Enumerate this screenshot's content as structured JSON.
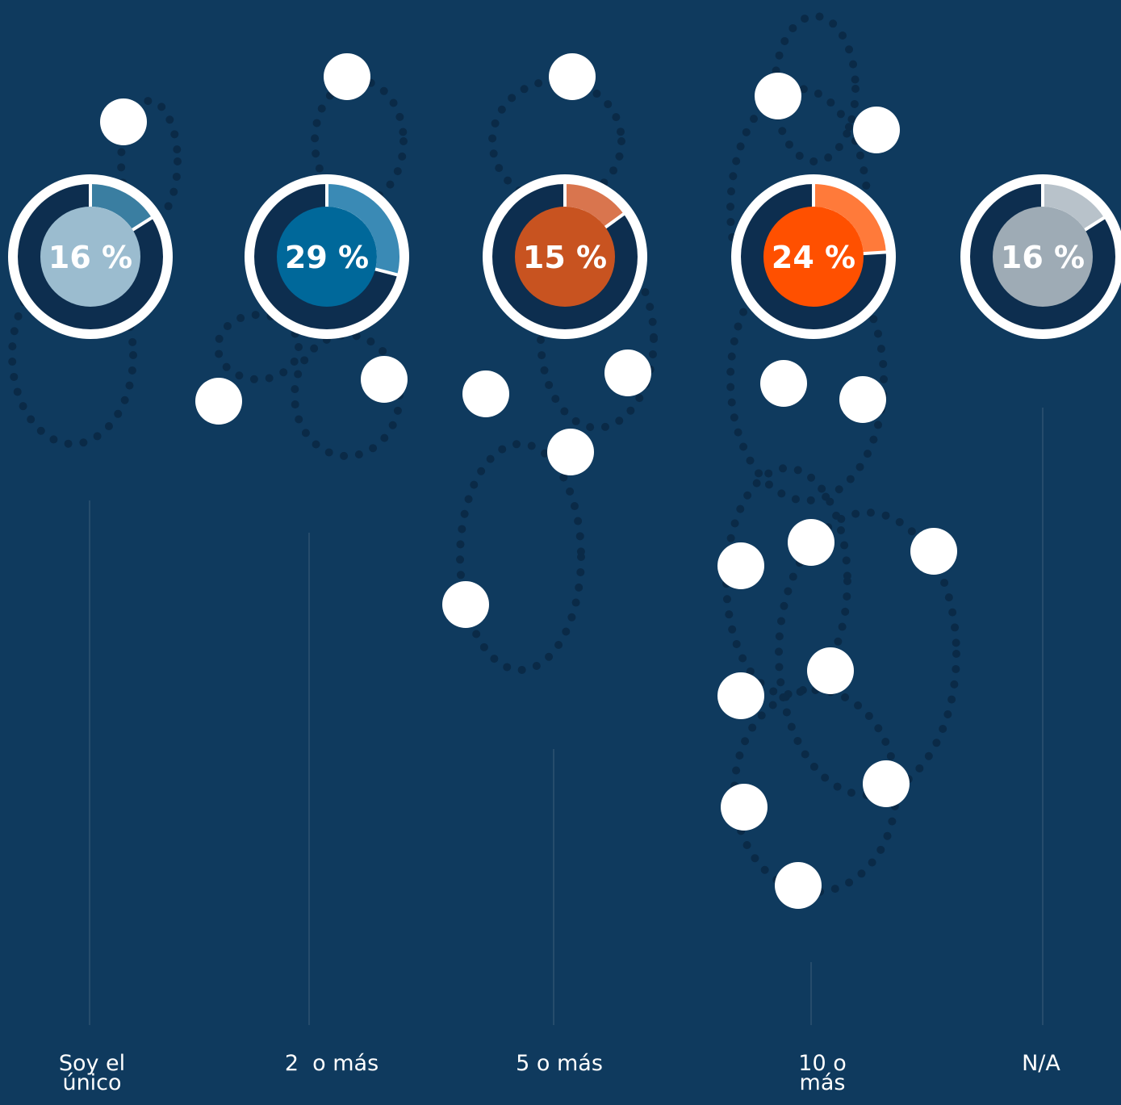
{
  "chart_data": {
    "type": "donut",
    "categories": [
      "Soy el único",
      "2  o más",
      "5 o más",
      "10 o más",
      "N/A"
    ],
    "values": [
      16,
      29,
      15,
      24,
      16
    ],
    "value_labels": [
      "16 %",
      "29 %",
      "15 %",
      "24 %",
      "16 %"
    ],
    "colors": [
      "#9bbccf",
      "#00689a",
      "#c85320",
      "#ff5000",
      "#9eabb5"
    ],
    "wedge_colors": [
      "#3a7ea1",
      "#3a8ab5",
      "#d9754e",
      "#ff7a3a",
      "#b8c2ca"
    ]
  }
}
